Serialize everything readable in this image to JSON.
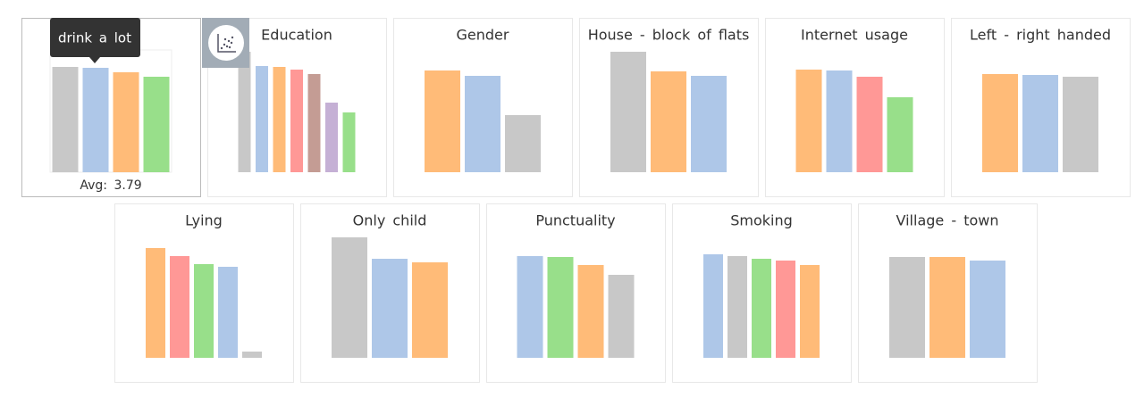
{
  "chart_data": [
    {
      "type": "bar",
      "tooltip": "drink a lot",
      "annotation": "Avg: 3.79",
      "values": [
        118,
        117,
        112,
        107
      ],
      "colors": [
        "#c8c8c8",
        "#aec7e8",
        "#ffbb78",
        "#98df8a"
      ]
    },
    {
      "type": "bar",
      "title": "Education",
      "values": [
        135,
        119,
        118,
        115,
        110,
        78,
        67
      ],
      "colors": [
        "#c8c8c8",
        "#aec7e8",
        "#ffbb78",
        "#ff9896",
        "#c49c94",
        "#c5b0d5",
        "#98df8a"
      ]
    },
    {
      "type": "bar",
      "title": "Gender",
      "values": [
        114,
        108,
        64
      ],
      "colors": [
        "#ffbb78",
        "#aec7e8",
        "#c8c8c8"
      ]
    },
    {
      "type": "bar",
      "title": "House - block of flats",
      "values": [
        135,
        113,
        108
      ],
      "colors": [
        "#c8c8c8",
        "#ffbb78",
        "#aec7e8"
      ]
    },
    {
      "type": "bar",
      "title": "Internet usage",
      "values": [
        115,
        114,
        107,
        84
      ],
      "colors": [
        "#ffbb78",
        "#aec7e8",
        "#ff9896",
        "#98df8a"
      ]
    },
    {
      "type": "bar",
      "title": "Left - right handed",
      "values": [
        110,
        109,
        107
      ],
      "colors": [
        "#ffbb78",
        "#aec7e8",
        "#c8c8c8"
      ]
    },
    {
      "type": "bar",
      "title": "Lying",
      "values": [
        123,
        114,
        105,
        102,
        7
      ],
      "colors": [
        "#ffbb78",
        "#ff9896",
        "#98df8a",
        "#aec7e8",
        "#c8c8c8"
      ]
    },
    {
      "type": "bar",
      "title": "Only child",
      "values": [
        135,
        111,
        107
      ],
      "colors": [
        "#c8c8c8",
        "#aec7e8",
        "#ffbb78"
      ]
    },
    {
      "type": "bar",
      "title": "Punctuality",
      "values": [
        114,
        113,
        104,
        93
      ],
      "colors": [
        "#aec7e8",
        "#98df8a",
        "#ffbb78",
        "#c8c8c8"
      ]
    },
    {
      "type": "bar",
      "title": "Smoking",
      "values": [
        116,
        114,
        111,
        109,
        104
      ],
      "colors": [
        "#aec7e8",
        "#c8c8c8",
        "#98df8a",
        "#ff9896",
        "#ffbb78"
      ]
    },
    {
      "type": "bar",
      "title": "Village - town",
      "values": [
        113,
        113,
        109
      ],
      "colors": [
        "#c8c8c8",
        "#ffbb78",
        "#aec7e8"
      ]
    }
  ]
}
